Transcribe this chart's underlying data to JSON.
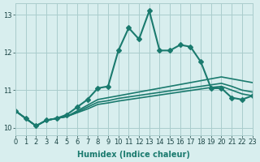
{
  "xlabel": "Humidex (Indice chaleur)",
  "ylabel": "",
  "bg_color": "#d8eeee",
  "grid_color": "#aacccc",
  "line_color": "#1a7a6e",
  "xlim": [
    0,
    23
  ],
  "ylim": [
    9.8,
    13.3
  ],
  "xticks": [
    0,
    1,
    2,
    3,
    4,
    5,
    6,
    7,
    8,
    9,
    10,
    11,
    12,
    13,
    14,
    15,
    16,
    17,
    18,
    19,
    20,
    21,
    22,
    23
  ],
  "yticks": [
    10,
    11,
    12,
    13
  ],
  "curves": [
    {
      "x": [
        0,
        1,
        2,
        3,
        4,
        5,
        6,
        7,
        8,
        9,
        10,
        11,
        12,
        13,
        14,
        15,
        16,
        17,
        18,
        19,
        20,
        21,
        22,
        23
      ],
      "y": [
        10.45,
        10.25,
        10.05,
        10.2,
        10.25,
        10.35,
        10.55,
        10.75,
        11.05,
        11.1,
        12.05,
        12.65,
        12.35,
        13.1,
        12.05,
        12.05,
        12.2,
        12.15,
        11.75,
        11.05,
        11.05,
        10.8,
        10.75,
        10.85
      ],
      "marker": "D",
      "markersize": 3,
      "linewidth": 1.5
    },
    {
      "x": [
        0,
        1,
        2,
        3,
        4,
        5,
        6,
        7,
        8,
        9,
        10,
        11,
        12,
        13,
        14,
        15,
        16,
        17,
        18,
        19,
        20,
        21,
        22,
        23
      ],
      "y": [
        10.45,
        10.25,
        10.05,
        10.2,
        10.25,
        10.3,
        10.45,
        10.6,
        10.75,
        10.8,
        10.85,
        10.9,
        10.95,
        11.0,
        11.05,
        11.1,
        11.15,
        11.2,
        11.25,
        11.3,
        11.35,
        11.3,
        11.25,
        11.2
      ],
      "marker": null,
      "markersize": 0,
      "linewidth": 1.2
    },
    {
      "x": [
        0,
        1,
        2,
        3,
        4,
        5,
        6,
        7,
        8,
        9,
        10,
        11,
        12,
        13,
        14,
        15,
        16,
        17,
        18,
        19,
        20,
        21,
        22,
        23
      ],
      "y": [
        10.45,
        10.25,
        10.05,
        10.2,
        10.25,
        10.3,
        10.42,
        10.55,
        10.68,
        10.72,
        10.78,
        10.82,
        10.86,
        10.9,
        10.94,
        10.98,
        11.02,
        11.06,
        11.1,
        11.14,
        11.18,
        11.1,
        11.0,
        10.95
      ],
      "marker": null,
      "markersize": 0,
      "linewidth": 1.2
    },
    {
      "x": [
        0,
        1,
        2,
        3,
        4,
        5,
        6,
        7,
        8,
        9,
        10,
        11,
        12,
        13,
        14,
        15,
        16,
        17,
        18,
        19,
        20,
        21,
        22,
        23
      ],
      "y": [
        10.45,
        10.25,
        10.05,
        10.2,
        10.25,
        10.3,
        10.4,
        10.5,
        10.62,
        10.66,
        10.71,
        10.75,
        10.79,
        10.83,
        10.87,
        10.91,
        10.95,
        10.99,
        11.03,
        11.07,
        11.1,
        11.0,
        10.9,
        10.85
      ],
      "marker": null,
      "markersize": 0,
      "linewidth": 1.2
    }
  ]
}
